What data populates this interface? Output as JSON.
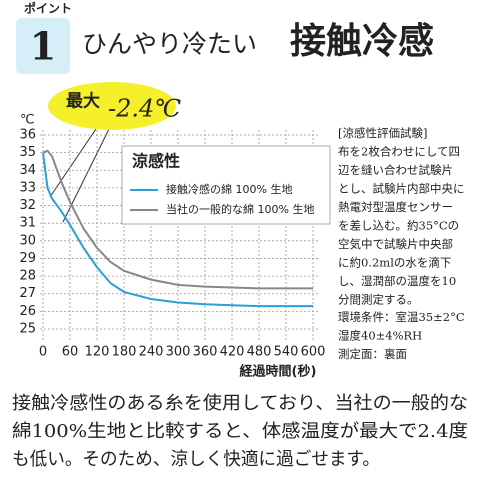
{
  "header": {
    "badge_label": "ポイント",
    "badge_number": "1",
    "title": [
      "ひんやり冷たい",
      "接触冷感"
    ]
  },
  "chart_data": {
    "type": "line",
    "title": "涼感性",
    "ylabel": "℃",
    "xlabel": "経過時間(秒)",
    "annotation": [
      "最大",
      "-2.4℃"
    ],
    "x": [
      0,
      10,
      20,
      40,
      60,
      90,
      120,
      150,
      180,
      240,
      300,
      360,
      420,
      480,
      540,
      600
    ],
    "series": [
      {
        "name": "接触冷感の綿 100% 生地",
        "color": "#2a9fd8",
        "values": [
          35,
          33,
          32.4,
          31.7,
          30.9,
          29.6,
          28.5,
          27.6,
          27.1,
          26.7,
          26.5,
          26.4,
          26.35,
          26.3,
          26.3,
          26.3
        ]
      },
      {
        "name": "当社の一般的な綿 100% 生地",
        "color": "#888888",
        "values": [
          35,
          35.1,
          34.8,
          33.4,
          32.2,
          30.7,
          29.6,
          28.8,
          28.3,
          27.8,
          27.5,
          27.4,
          27.35,
          27.3,
          27.3,
          27.3
        ]
      }
    ],
    "xlim": [
      0,
      600
    ],
    "xticks": [
      0,
      60,
      120,
      180,
      240,
      300,
      360,
      420,
      480,
      540,
      600
    ],
    "ylim": [
      25,
      36
    ],
    "yticks": [
      25,
      26,
      27,
      28,
      29,
      30,
      31,
      32,
      33,
      34,
      35,
      36
    ],
    "grid": true
  },
  "notes": [
    "[涼感性評価試験]",
    "布を2枚合わせにして四",
    "辺を縫い合わせ試験片",
    "とし、試験片内部中央に",
    "熱電対型温度センサー",
    "を差し込む。約35°Cの",
    "空気中で試験片中央部",
    "に約0.2mlの水を滴下",
    "し、湿潤部の温度を10",
    "分間測定する。"
  ],
  "conditions": [
    "環境条件：室温35±2°C",
    "湿度40±4%RH",
    "測定面：裏面"
  ],
  "footer": [
    "接触冷感性のある糸を使用しており、当社の一般的な",
    "綿100%生地と比較すると、体感温度が最大で2.4度",
    "も低い。そのため、涼しく快適に過ごせます。"
  ]
}
